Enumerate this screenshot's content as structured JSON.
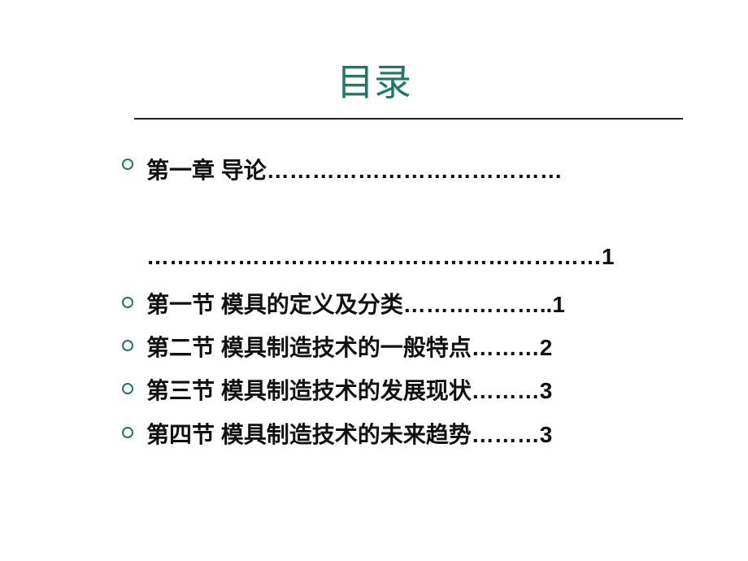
{
  "title": {
    "text": "目录",
    "color": "#227766",
    "fontsize": 46
  },
  "toc": [
    {
      "type": "chapter",
      "label": "第一章 导论",
      "page": "1",
      "dots1": "…………………………………",
      "dots2": "……………………………………………………"
    },
    {
      "type": "section",
      "label": "第一节 模具的定义及分类",
      "page": "1",
      "dots": "……………….."
    },
    {
      "type": "section",
      "label": "第二节 模具制造技术的一般特点",
      "page": "2",
      "dots": "………"
    },
    {
      "type": "section",
      "label": "第三节 模具制造技术的发展现状",
      "page": "3",
      "dots": "………"
    },
    {
      "type": "section",
      "label": "第四节 模具制造技术的未来趋势",
      "page": "3",
      "dots": "………"
    }
  ],
  "style": {
    "bullet_border_color": "#227766",
    "underline_color": "#222222",
    "text_color": "#111111",
    "text_fontsize": 28,
    "background": "#ffffff"
  }
}
